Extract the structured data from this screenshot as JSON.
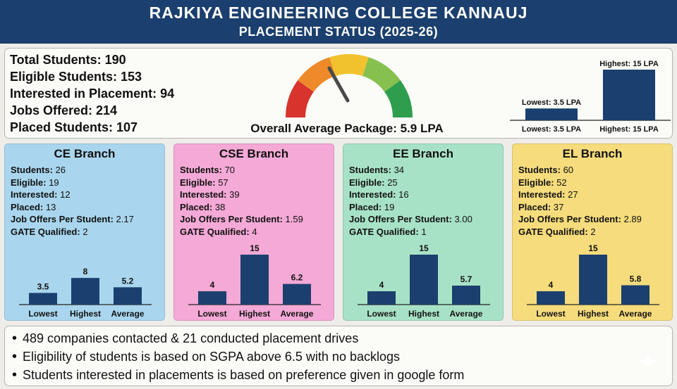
{
  "header": {
    "title": "RAJKIYA ENGINEERING COLLEGE KANNAUJ",
    "subtitle": "PLACEMENT STATUS (2025-26)"
  },
  "summary": {
    "total_students": "Total Students: 190",
    "eligible_students": "Eligible Students: 153",
    "interested": "Interested in Placement: 94",
    "jobs_offered": "Jobs Offered: 214",
    "placed": "Placed Students: 107",
    "average_package": "Overall Average Package: 5.9 LPA",
    "gauge_value": 5.9,
    "gauge_colors": [
      "#d8332c",
      "#ee8a2a",
      "#f2c22e",
      "#86c04e",
      "#2e9e4e"
    ],
    "needle_color": "#4a4a4a"
  },
  "chart_data": [
    {
      "type": "bar",
      "title": "",
      "categories": [
        "Lowest: 3.5 LPA",
        "Highest: 15 LPA"
      ],
      "values": [
        3.5,
        15
      ],
      "data_labels": [
        "Lowest: 3.5 LPA",
        "Highest: 15 LPA"
      ],
      "ylim": [
        0,
        15
      ],
      "color": "#1b3f6e"
    },
    {
      "type": "bar",
      "title": "CE Branch",
      "categories": [
        "Lowest",
        "Highest",
        "Average"
      ],
      "values": [
        3.5,
        8,
        5.2
      ],
      "data_labels": [
        "3.5",
        "8",
        "5.2"
      ],
      "ylim": [
        0,
        15
      ],
      "color": "#1b3f6e"
    },
    {
      "type": "bar",
      "title": "CSE Branch",
      "categories": [
        "Lowest",
        "Highest",
        "Average"
      ],
      "values": [
        4,
        15,
        6.2
      ],
      "data_labels": [
        "4",
        "15",
        "6.2"
      ],
      "ylim": [
        0,
        15
      ],
      "color": "#1b3f6e"
    },
    {
      "type": "bar",
      "title": "EE Branch",
      "categories": [
        "Lowest",
        "Highest",
        "Average"
      ],
      "values": [
        4,
        15,
        5.7
      ],
      "data_labels": [
        "4",
        "15",
        "5.7"
      ],
      "ylim": [
        0,
        15
      ],
      "color": "#1b3f6e"
    },
    {
      "type": "bar",
      "title": "EL Branch",
      "categories": [
        "Lowest",
        "Highest",
        "Average"
      ],
      "values": [
        4,
        15,
        5.8
      ],
      "data_labels": [
        "4",
        "15",
        "5.8"
      ],
      "ylim": [
        0,
        15
      ],
      "color": "#1b3f6e"
    }
  ],
  "branches": [
    {
      "name": "CE Branch",
      "bg": "#a9d6ee",
      "students": "26",
      "eligible": "19",
      "interested": "12",
      "placed": "13",
      "offers_per_student": "2.17",
      "gate": "2"
    },
    {
      "name": "CSE Branch",
      "bg": "#f4a9d6",
      "students": "70",
      "eligible": "57",
      "interested": "39",
      "placed": "38",
      "offers_per_student": "1.59",
      "gate": "4"
    },
    {
      "name": "EE Branch",
      "bg": "#a8e2c6",
      "students": "34",
      "eligible": "25",
      "interested": "16",
      "placed": "19",
      "offers_per_student": "3.00",
      "gate": "1"
    },
    {
      "name": "EL Branch",
      "bg": "#f6dc7c",
      "students": "60",
      "eligible": "52",
      "interested": "27",
      "placed": "37",
      "offers_per_student": "2.89",
      "gate": "2"
    }
  ],
  "labels": {
    "students": "Students:",
    "eligible": "Eligible:",
    "interested": "Interested:",
    "placed": "Placed:",
    "offers_per_student": "Job Offers Per Student:",
    "gate": "GATE Qualified:"
  },
  "notes": [
    "489 companies contacted & 21 conducted placement drives",
    "Eligibility of students is based on SGPA above 6.5 with no backlogs",
    "Students interested in placements is based on preference given in google form"
  ]
}
